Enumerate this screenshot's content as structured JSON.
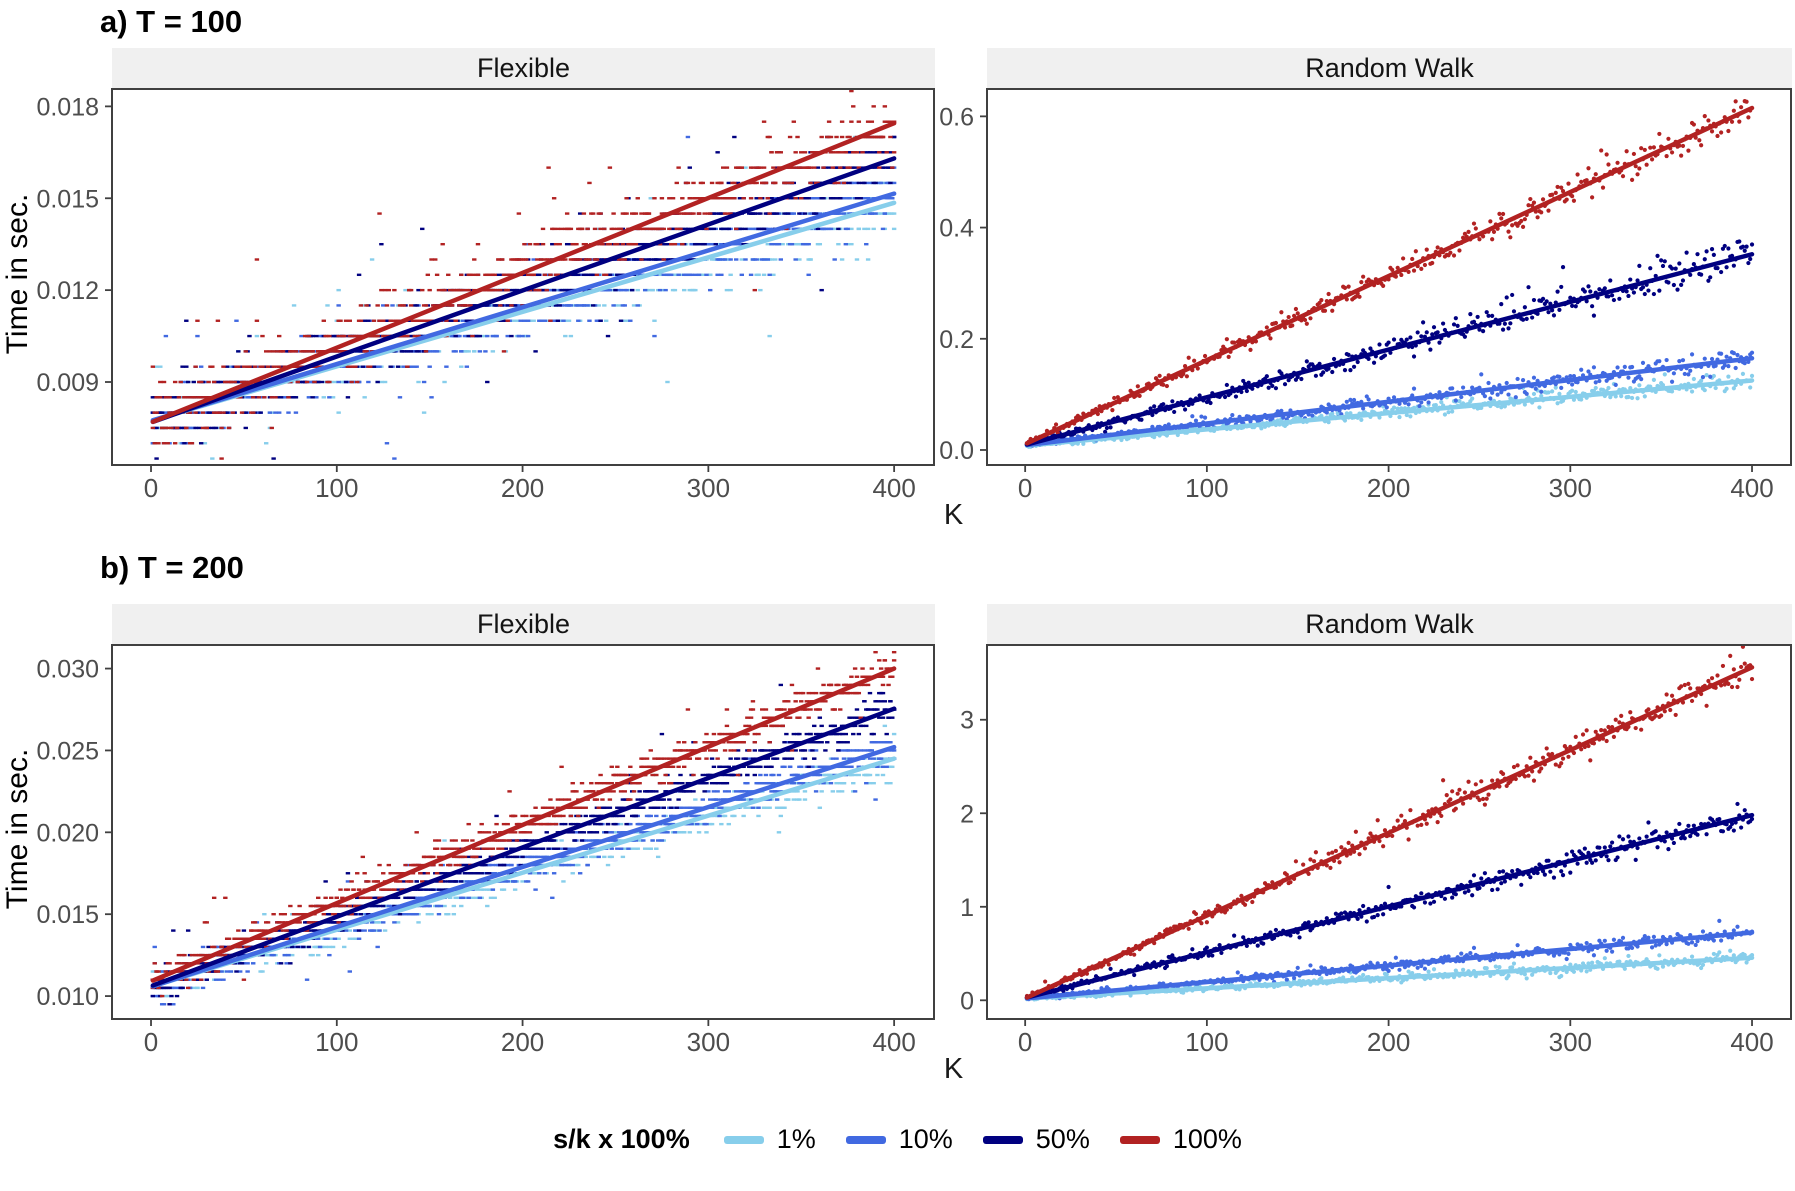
{
  "figure": {
    "section_a_title": "a) T = 100",
    "section_b_title": "b) T = 200",
    "x_axis_label": "K",
    "y_axis_label": "Time in sec.",
    "panel_titles": [
      "Flexible",
      "Random Walk"
    ],
    "colors": {
      "pct1": "#87CEEB",
      "pct10": "#4169E1",
      "pct50": "#000080",
      "pct100": "#B22222",
      "strip_background": "#f0f0f0",
      "panel_border": "#404040",
      "axis_text": "#4d4d4d"
    },
    "legend": {
      "title": "s/k x 100%",
      "items": [
        {
          "label": "1%",
          "color": "#87CEEB"
        },
        {
          "label": "10%",
          "color": "#4169E1"
        },
        {
          "label": "50%",
          "color": "#000080"
        },
        {
          "label": "100%",
          "color": "#B22222"
        }
      ]
    }
  },
  "chart_data": [
    {
      "id": "t100-flexible",
      "type": "scatter",
      "section": "a) T = 100",
      "panel_title": "Flexible",
      "xlabel": "K",
      "ylabel": "Time in sec.",
      "xlim": [
        -21,
        422
      ],
      "ylim": [
        0.00629,
        0.0186
      ],
      "xticks": [
        0,
        100,
        200,
        300,
        400
      ],
      "xtick_labels": [
        "0",
        "100",
        "200",
        "300",
        "400"
      ],
      "yticks": [
        0.009,
        0.012,
        0.015,
        0.018
      ],
      "ytick_labels": [
        "0.009",
        "0.012",
        "0.015",
        "0.018"
      ],
      "grid": false,
      "scatter_style": {
        "quantize": 0.0005,
        "reps": 2,
        "marker": "dash",
        "outlier_prob": 0.035
      },
      "series": [
        {
          "name": "1%",
          "color": "#87CEEB",
          "noise": [
            0.00055,
            0
          ],
          "trend": {
            "x0": 1,
            "y0": 0.00775,
            "x1": 400,
            "y1": 0.01485
          }
        },
        {
          "name": "10%",
          "color": "#4169E1",
          "noise": [
            0.00055,
            0
          ],
          "trend": {
            "x0": 1,
            "y0": 0.00775,
            "x1": 400,
            "y1": 0.01515
          }
        },
        {
          "name": "50%",
          "color": "#000080",
          "noise": [
            0.00055,
            0
          ],
          "trend": {
            "x0": 1,
            "y0": 0.0077,
            "x1": 400,
            "y1": 0.0163
          }
        },
        {
          "name": "100%",
          "color": "#B22222",
          "noise": [
            0.00055,
            0
          ],
          "trend": {
            "x0": 1,
            "y0": 0.0077,
            "x1": 400,
            "y1": 0.01745
          }
        }
      ]
    },
    {
      "id": "t100-random-walk",
      "type": "scatter",
      "section": "a) T = 100",
      "panel_title": "Random Walk",
      "xlabel": "K",
      "ylabel": "Time in sec.",
      "xlim": [
        -21,
        422
      ],
      "ylim": [
        -0.027,
        0.651
      ],
      "xticks": [
        0,
        100,
        200,
        300,
        400
      ],
      "xtick_labels": [
        "0",
        "100",
        "200",
        "300",
        "400"
      ],
      "yticks": [
        0.0,
        0.2,
        0.4,
        0.6
      ],
      "ytick_labels": [
        "0.0",
        "0.2",
        "0.4",
        "0.6"
      ],
      "grid": false,
      "scatter_style": {
        "marker": "dot",
        "outlier_prob": 0.03
      },
      "series": [
        {
          "name": "1%",
          "color": "#87CEEB",
          "noise": [
            0.002,
            0.006
          ],
          "trend": {
            "x0": 1,
            "y0": 0.008,
            "x1": 400,
            "y1": 0.125
          }
        },
        {
          "name": "10%",
          "color": "#4169E1",
          "noise": [
            0.002,
            0.008
          ],
          "trend": {
            "x0": 1,
            "y0": 0.009,
            "x1": 400,
            "y1": 0.165
          }
        },
        {
          "name": "50%",
          "color": "#000080",
          "noise": [
            0.003,
            0.012
          ],
          "trend": {
            "x0": 1,
            "y0": 0.01,
            "x1": 400,
            "y1": 0.352
          }
        },
        {
          "name": "100%",
          "color": "#B22222",
          "noise": [
            0.003,
            0.014
          ],
          "trend": {
            "x0": 1,
            "y0": 0.012,
            "x1": 400,
            "y1": 0.615
          }
        }
      ]
    },
    {
      "id": "t200-flexible",
      "type": "scatter",
      "section": "b) T = 200",
      "panel_title": "Flexible",
      "xlabel": "K",
      "ylabel": "Time in sec.",
      "xlim": [
        -21,
        422
      ],
      "ylim": [
        0.0086,
        0.0315
      ],
      "xticks": [
        0,
        100,
        200,
        300,
        400
      ],
      "xtick_labels": [
        "0",
        "100",
        "200",
        "300",
        "400"
      ],
      "yticks": [
        0.01,
        0.015,
        0.02,
        0.025,
        0.03
      ],
      "ytick_labels": [
        "0.010",
        "0.015",
        "0.020",
        "0.025",
        "0.030"
      ],
      "grid": false,
      "scatter_style": {
        "quantize": 0.0005,
        "reps": 2,
        "marker": "dash",
        "outlier_prob": 0.03
      },
      "series": [
        {
          "name": "1%",
          "color": "#87CEEB",
          "noise": [
            0.0005,
            0
          ],
          "trend": {
            "x0": 1,
            "y0": 0.0106,
            "x1": 400,
            "y1": 0.0245
          }
        },
        {
          "name": "10%",
          "color": "#4169E1",
          "noise": [
            0.0005,
            0
          ],
          "trend": {
            "x0": 1,
            "y0": 0.0106,
            "x1": 400,
            "y1": 0.0252
          }
        },
        {
          "name": "50%",
          "color": "#000080",
          "noise": [
            0.0005,
            0
          ],
          "trend": {
            "x0": 1,
            "y0": 0.01065,
            "x1": 400,
            "y1": 0.02755
          }
        },
        {
          "name": "100%",
          "color": "#B22222",
          "noise": [
            0.00052,
            0
          ],
          "trend": {
            "x0": 1,
            "y0": 0.01095,
            "x1": 400,
            "y1": 0.03
          }
        }
      ]
    },
    {
      "id": "t200-random-walk",
      "type": "scatter",
      "section": "b) T = 200",
      "panel_title": "Random Walk",
      "xlabel": "K",
      "ylabel": "Time in sec.",
      "xlim": [
        -21,
        422
      ],
      "ylim": [
        -0.2,
        3.81
      ],
      "xticks": [
        0,
        100,
        200,
        300,
        400
      ],
      "xtick_labels": [
        "0",
        "100",
        "200",
        "300",
        "400"
      ],
      "yticks": [
        0,
        1,
        2,
        3
      ],
      "ytick_labels": [
        "0",
        "1",
        "2",
        "3"
      ],
      "grid": false,
      "scatter_style": {
        "marker": "dot",
        "outlier_prob": 0.025
      },
      "series": [
        {
          "name": "1%",
          "color": "#87CEEB",
          "noise": [
            0.008,
            0.03
          ],
          "trend": {
            "x0": 1,
            "y0": 0.02,
            "x1": 400,
            "y1": 0.455
          }
        },
        {
          "name": "10%",
          "color": "#4169E1",
          "noise": [
            0.008,
            0.035
          ],
          "trend": {
            "x0": 1,
            "y0": 0.02,
            "x1": 400,
            "y1": 0.725
          }
        },
        {
          "name": "50%",
          "color": "#000080",
          "noise": [
            0.012,
            0.06
          ],
          "trend": {
            "x0": 1,
            "y0": 0.03,
            "x1": 400,
            "y1": 1.98
          }
        },
        {
          "name": "100%",
          "color": "#B22222",
          "noise": [
            0.015,
            0.08
          ],
          "trend": {
            "x0": 1,
            "y0": 0.03,
            "x1": 400,
            "y1": 3.56
          }
        }
      ]
    }
  ]
}
